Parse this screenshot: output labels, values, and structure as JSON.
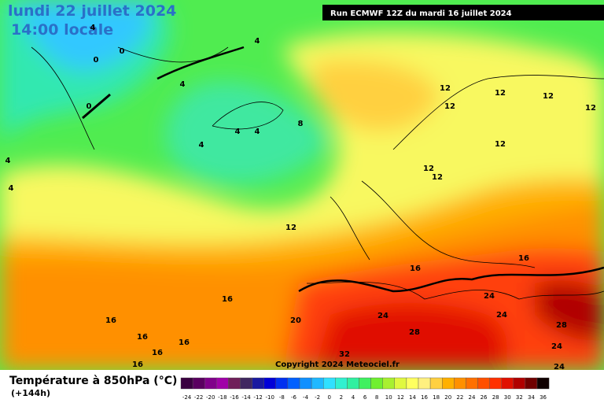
{
  "header": {
    "date": "lundi 22 juillet 2024",
    "time": "14:00 locale",
    "run": "Run ECMWF 12Z du mardi 16 juillet 2024",
    "copyright": "Copyright 2024 Meteociel.fr"
  },
  "legend": {
    "title": "Température à 850hPa (°C)",
    "lead": "(+144h)",
    "ticks": [
      -24,
      -22,
      -20,
      -18,
      -16,
      -14,
      -12,
      -10,
      -8,
      -6,
      -4,
      -2,
      0,
      2,
      4,
      6,
      8,
      10,
      12,
      14,
      16,
      18,
      20,
      22,
      24,
      26,
      28,
      30,
      32,
      34,
      36
    ],
    "colors": [
      "#3a0040",
      "#5a0060",
      "#80008a",
      "#a000a8",
      "#70205a",
      "#402860",
      "#1a1aa0",
      "#0000d8",
      "#0030f0",
      "#0060ff",
      "#1090ff",
      "#20b8ff",
      "#30e0ff",
      "#30f0d0",
      "#30f0a0",
      "#40f060",
      "#70f030",
      "#a8f030",
      "#e0f840",
      "#ffff60",
      "#fff080",
      "#ffd040",
      "#ffb000",
      "#ff9000",
      "#ff7000",
      "#ff5000",
      "#ff3000",
      "#e01000",
      "#b00000",
      "#700000",
      "#100000"
    ]
  },
  "contours": [
    "4",
    "0",
    "0",
    "4",
    "4",
    "0",
    "8",
    "4",
    "4",
    "4",
    "4",
    "4",
    "12",
    "12",
    "12",
    "12",
    "12",
    "12",
    "12",
    "12",
    "12",
    "16",
    "16",
    "16",
    "16",
    "16",
    "16",
    "16",
    "16",
    "20",
    "24",
    "24",
    "24",
    "28",
    "28",
    "24",
    "32",
    "24"
  ]
}
